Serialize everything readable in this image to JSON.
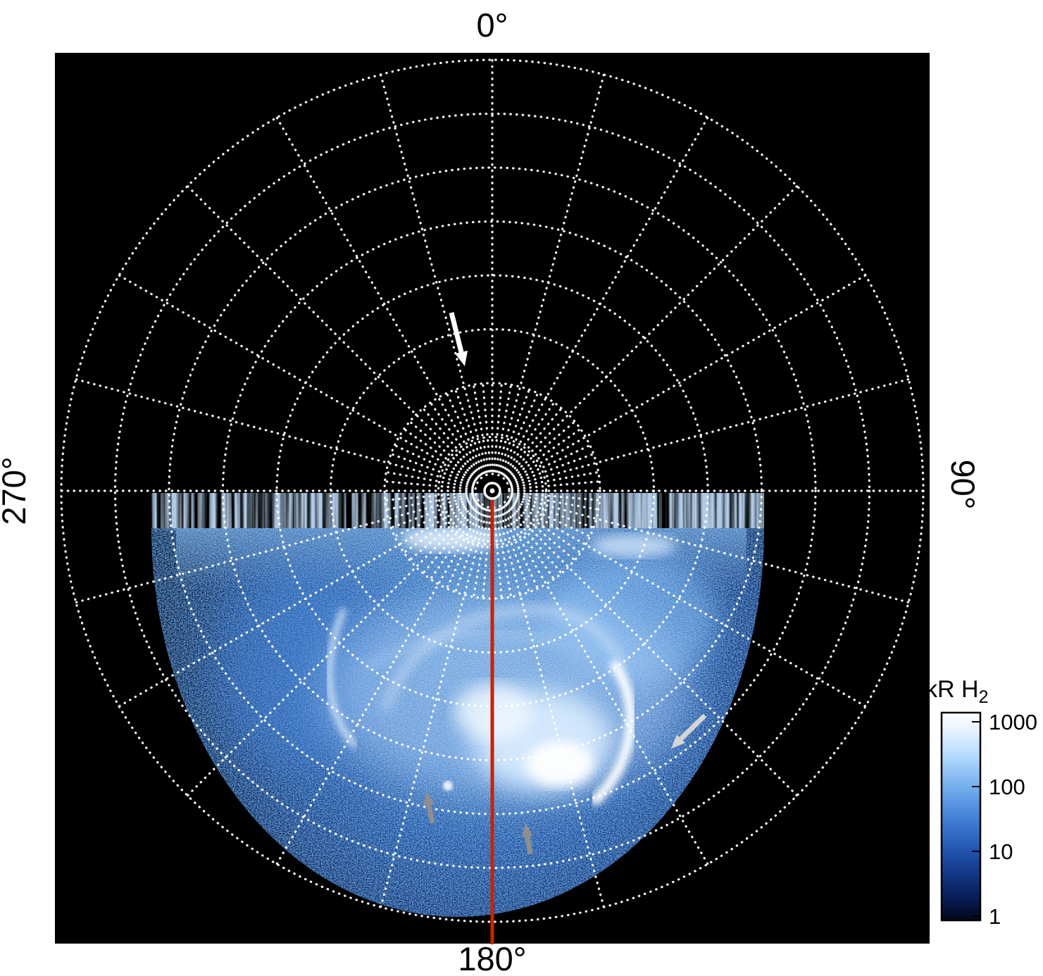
{
  "figure": {
    "background": "#ffffff",
    "plot_background": "#000000",
    "grid_color": "#ffffff",
    "meridian_color": "#cc2200"
  },
  "angle_labels": {
    "top": "0°",
    "right": "90°",
    "bottom": "180°",
    "left": "270°"
  },
  "colorbar": {
    "title_main": "kR H",
    "title_sub": "2",
    "ticks": [
      "1000",
      "100",
      "10",
      "1"
    ],
    "scale": "log",
    "gradient_top_to_bottom": [
      "#ffffff",
      "#b8dcff",
      "#7ab4f0",
      "#4583d8",
      "#2458b4",
      "#123684",
      "#081c52",
      "#020718"
    ]
  },
  "annotation_icons": {
    "white_arrow": "white-down-arrow-icon",
    "gray_arrow_right": "gray-arrow-toward-bright-arc-icon",
    "gray_arrow_lower_left": "gray-up-arrow-icon",
    "gray_arrow_lower_center": "gray-up-arrow-icon"
  },
  "chart_data": {
    "type": "heatmap",
    "projection": "polar",
    "angular_tick_labels": [
      "0°",
      "90°",
      "180°",
      "270°"
    ],
    "angular_ticks_deg": [
      0,
      90,
      180,
      270
    ],
    "radial_grid_circles": 8,
    "grid_style": "dotted white circles with spokes every 15°, dense spokes near pole",
    "colorbar": {
      "label": "kR H2",
      "scale": "log",
      "tick_values": [
        1000,
        100,
        10,
        1
      ],
      "range_min": 1,
      "range_max": 1000
    },
    "features": [
      {
        "name": "auroral-emission-region",
        "location": "lower hemisphere of polar projection, spanning ~90° through 180° to ~270° longitude",
        "value": "patchy H2 emission ~1-100 kR background"
      },
      {
        "name": "bright-auroral-arc",
        "location": "right of the 180° meridian at mid radii (crescent shape)",
        "value": "~1000 kR"
      },
      {
        "name": "diffuse-bright-core",
        "location": "near 180° meridian, mid radii",
        "value": "saturated white emission approaching 1000 kR"
      },
      {
        "name": "meridian-reference-line",
        "location": "solid red line from pole along 180° meridian",
        "value": "180°"
      }
    ]
  }
}
